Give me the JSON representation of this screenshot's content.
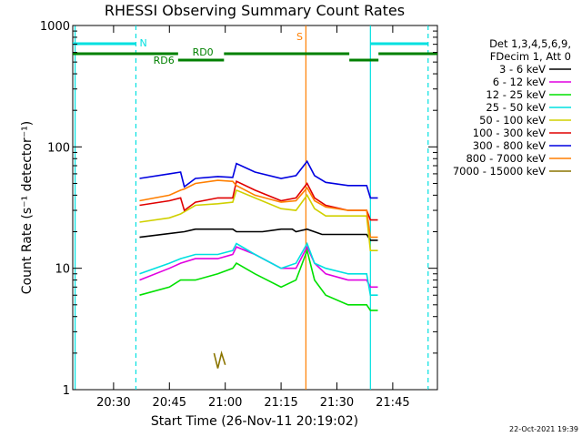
{
  "chart_data": {
    "type": "line",
    "title": "RHESSI Observing Summary Count Rates",
    "xlabel": "Start Time (26-Nov-11 20:19:02)",
    "ylabel": "Count Rate (s⁻¹ detector⁻¹)",
    "yscale": "log",
    "ylim": [
      1,
      1000
    ],
    "xlim": [
      "20:19:02",
      "21:57:00"
    ],
    "x_ticks": [
      "20:30",
      "20:45",
      "21:00",
      "21:15",
      "21:30",
      "21:45"
    ],
    "y_ticks": [
      "1",
      "10",
      "100",
      "1000"
    ],
    "grid": false,
    "legend_position": "right",
    "legend_header": [
      "Det 1,3,4,5,6,9,",
      "FDecim 1, Att 0"
    ],
    "timestamp": "22-Oct-2021 19:39",
    "series": [
      {
        "name": "3 - 6 keV",
        "color": "#000000",
        "time": [
          "20:37",
          "20:49",
          "20:52",
          "21:02",
          "21:03",
          "21:10",
          "21:15",
          "21:18",
          "21:19",
          "21:22",
          "21:26",
          "21:33",
          "21:38",
          "21:39",
          "21:41"
        ],
        "values": [
          18,
          20,
          21,
          21,
          20,
          20,
          21,
          21,
          20,
          21,
          19,
          19,
          19,
          17,
          17
        ]
      },
      {
        "name": "6 - 12 keV",
        "color": "#e000e0",
        "time": [
          "20:37",
          "20:45",
          "20:48",
          "20:52",
          "20:58",
          "21:02",
          "21:03",
          "21:08",
          "21:15",
          "21:19",
          "21:22",
          "21:24",
          "21:27",
          "21:33",
          "21:38",
          "21:39",
          "21:41"
        ],
        "values": [
          8,
          10,
          11,
          12,
          12,
          13,
          15,
          13,
          10,
          10,
          15,
          11,
          9,
          8,
          8,
          7,
          7
        ]
      },
      {
        "name": "12 - 25 keV",
        "color": "#00e000",
        "time": [
          "20:37",
          "20:45",
          "20:48",
          "20:52",
          "20:58",
          "21:02",
          "21:03",
          "21:08",
          "21:15",
          "21:19",
          "21:22",
          "21:24",
          "21:27",
          "21:33",
          "21:38",
          "21:39",
          "21:41"
        ],
        "values": [
          6,
          7,
          8,
          8,
          9,
          10,
          11,
          9,
          7,
          8,
          14,
          8,
          6,
          5,
          5,
          4.5,
          4.5
        ]
      },
      {
        "name": "25 - 50 keV",
        "color": "#00e0e0",
        "time": [
          "20:37",
          "20:45",
          "20:48",
          "20:52",
          "20:58",
          "21:02",
          "21:03",
          "21:08",
          "21:15",
          "21:19",
          "21:22",
          "21:24",
          "21:27",
          "21:33",
          "21:38",
          "21:39",
          "21:41"
        ],
        "values": [
          9,
          11,
          12,
          13,
          13,
          14,
          16,
          13,
          10,
          11,
          16,
          11,
          10,
          9,
          9,
          6,
          6
        ]
      },
      {
        "name": "50 - 100 keV",
        "color": "#d0d000",
        "time": [
          "20:37",
          "20:45",
          "20:48",
          "20:52",
          "20:58",
          "21:02",
          "21:03",
          "21:08",
          "21:15",
          "21:19",
          "21:22",
          "21:24",
          "21:27",
          "21:33",
          "21:38",
          "21:39",
          "21:41"
        ],
        "values": [
          24,
          26,
          28,
          33,
          34,
          35,
          44,
          38,
          31,
          30,
          40,
          31,
          27,
          27,
          27,
          14,
          14
        ]
      },
      {
        "name": "100 - 300 keV",
        "color": "#e00000",
        "time": [
          "20:37",
          "20:45",
          "20:48",
          "20:49",
          "20:52",
          "20:58",
          "21:02",
          "21:03",
          "21:08",
          "21:15",
          "21:19",
          "21:22",
          "21:24",
          "21:27",
          "21:33",
          "21:38",
          "21:39",
          "21:41"
        ],
        "values": [
          33,
          36,
          38,
          30,
          35,
          38,
          38,
          52,
          44,
          36,
          38,
          50,
          38,
          33,
          30,
          30,
          25,
          25
        ]
      },
      {
        "name": "300 - 800 keV",
        "color": "#0000e0",
        "time": [
          "20:37",
          "20:45",
          "20:48",
          "20:49",
          "20:52",
          "20:58",
          "21:02",
          "21:03",
          "21:08",
          "21:15",
          "21:19",
          "21:22",
          "21:24",
          "21:27",
          "21:33",
          "21:38",
          "21:39",
          "21:41"
        ],
        "values": [
          55,
          60,
          62,
          47,
          55,
          57,
          56,
          73,
          62,
          55,
          58,
          76,
          58,
          51,
          48,
          48,
          38,
          38
        ]
      },
      {
        "name": "800 - 7000 keV",
        "color": "#ff7f00",
        "time": [
          "20:37",
          "20:45",
          "20:48",
          "20:49",
          "20:52",
          "20:58",
          "21:02",
          "21:03",
          "21:08",
          "21:15",
          "21:19",
          "21:22",
          "21:24",
          "21:27",
          "21:33",
          "21:38",
          "21:39",
          "21:41"
        ],
        "values": [
          36,
          40,
          44,
          45,
          50,
          53,
          52,
          48,
          40,
          35,
          36,
          46,
          36,
          32,
          30,
          30,
          18,
          18
        ]
      },
      {
        "name": "7000 - 15000 keV",
        "color": "#8b7500",
        "time": [
          "20:57",
          "20:58",
          "20:59",
          "21:00"
        ],
        "values": [
          2,
          1.5,
          2,
          1.6
        ]
      }
    ],
    "attenuator_states": [
      {
        "label": "RD0",
        "color": "#008000"
      },
      {
        "label": "RD6",
        "color": "#008000"
      },
      {
        "label": "N",
        "color": "#00e0e0"
      },
      {
        "label": "S",
        "color": "#ff7f00"
      }
    ]
  }
}
